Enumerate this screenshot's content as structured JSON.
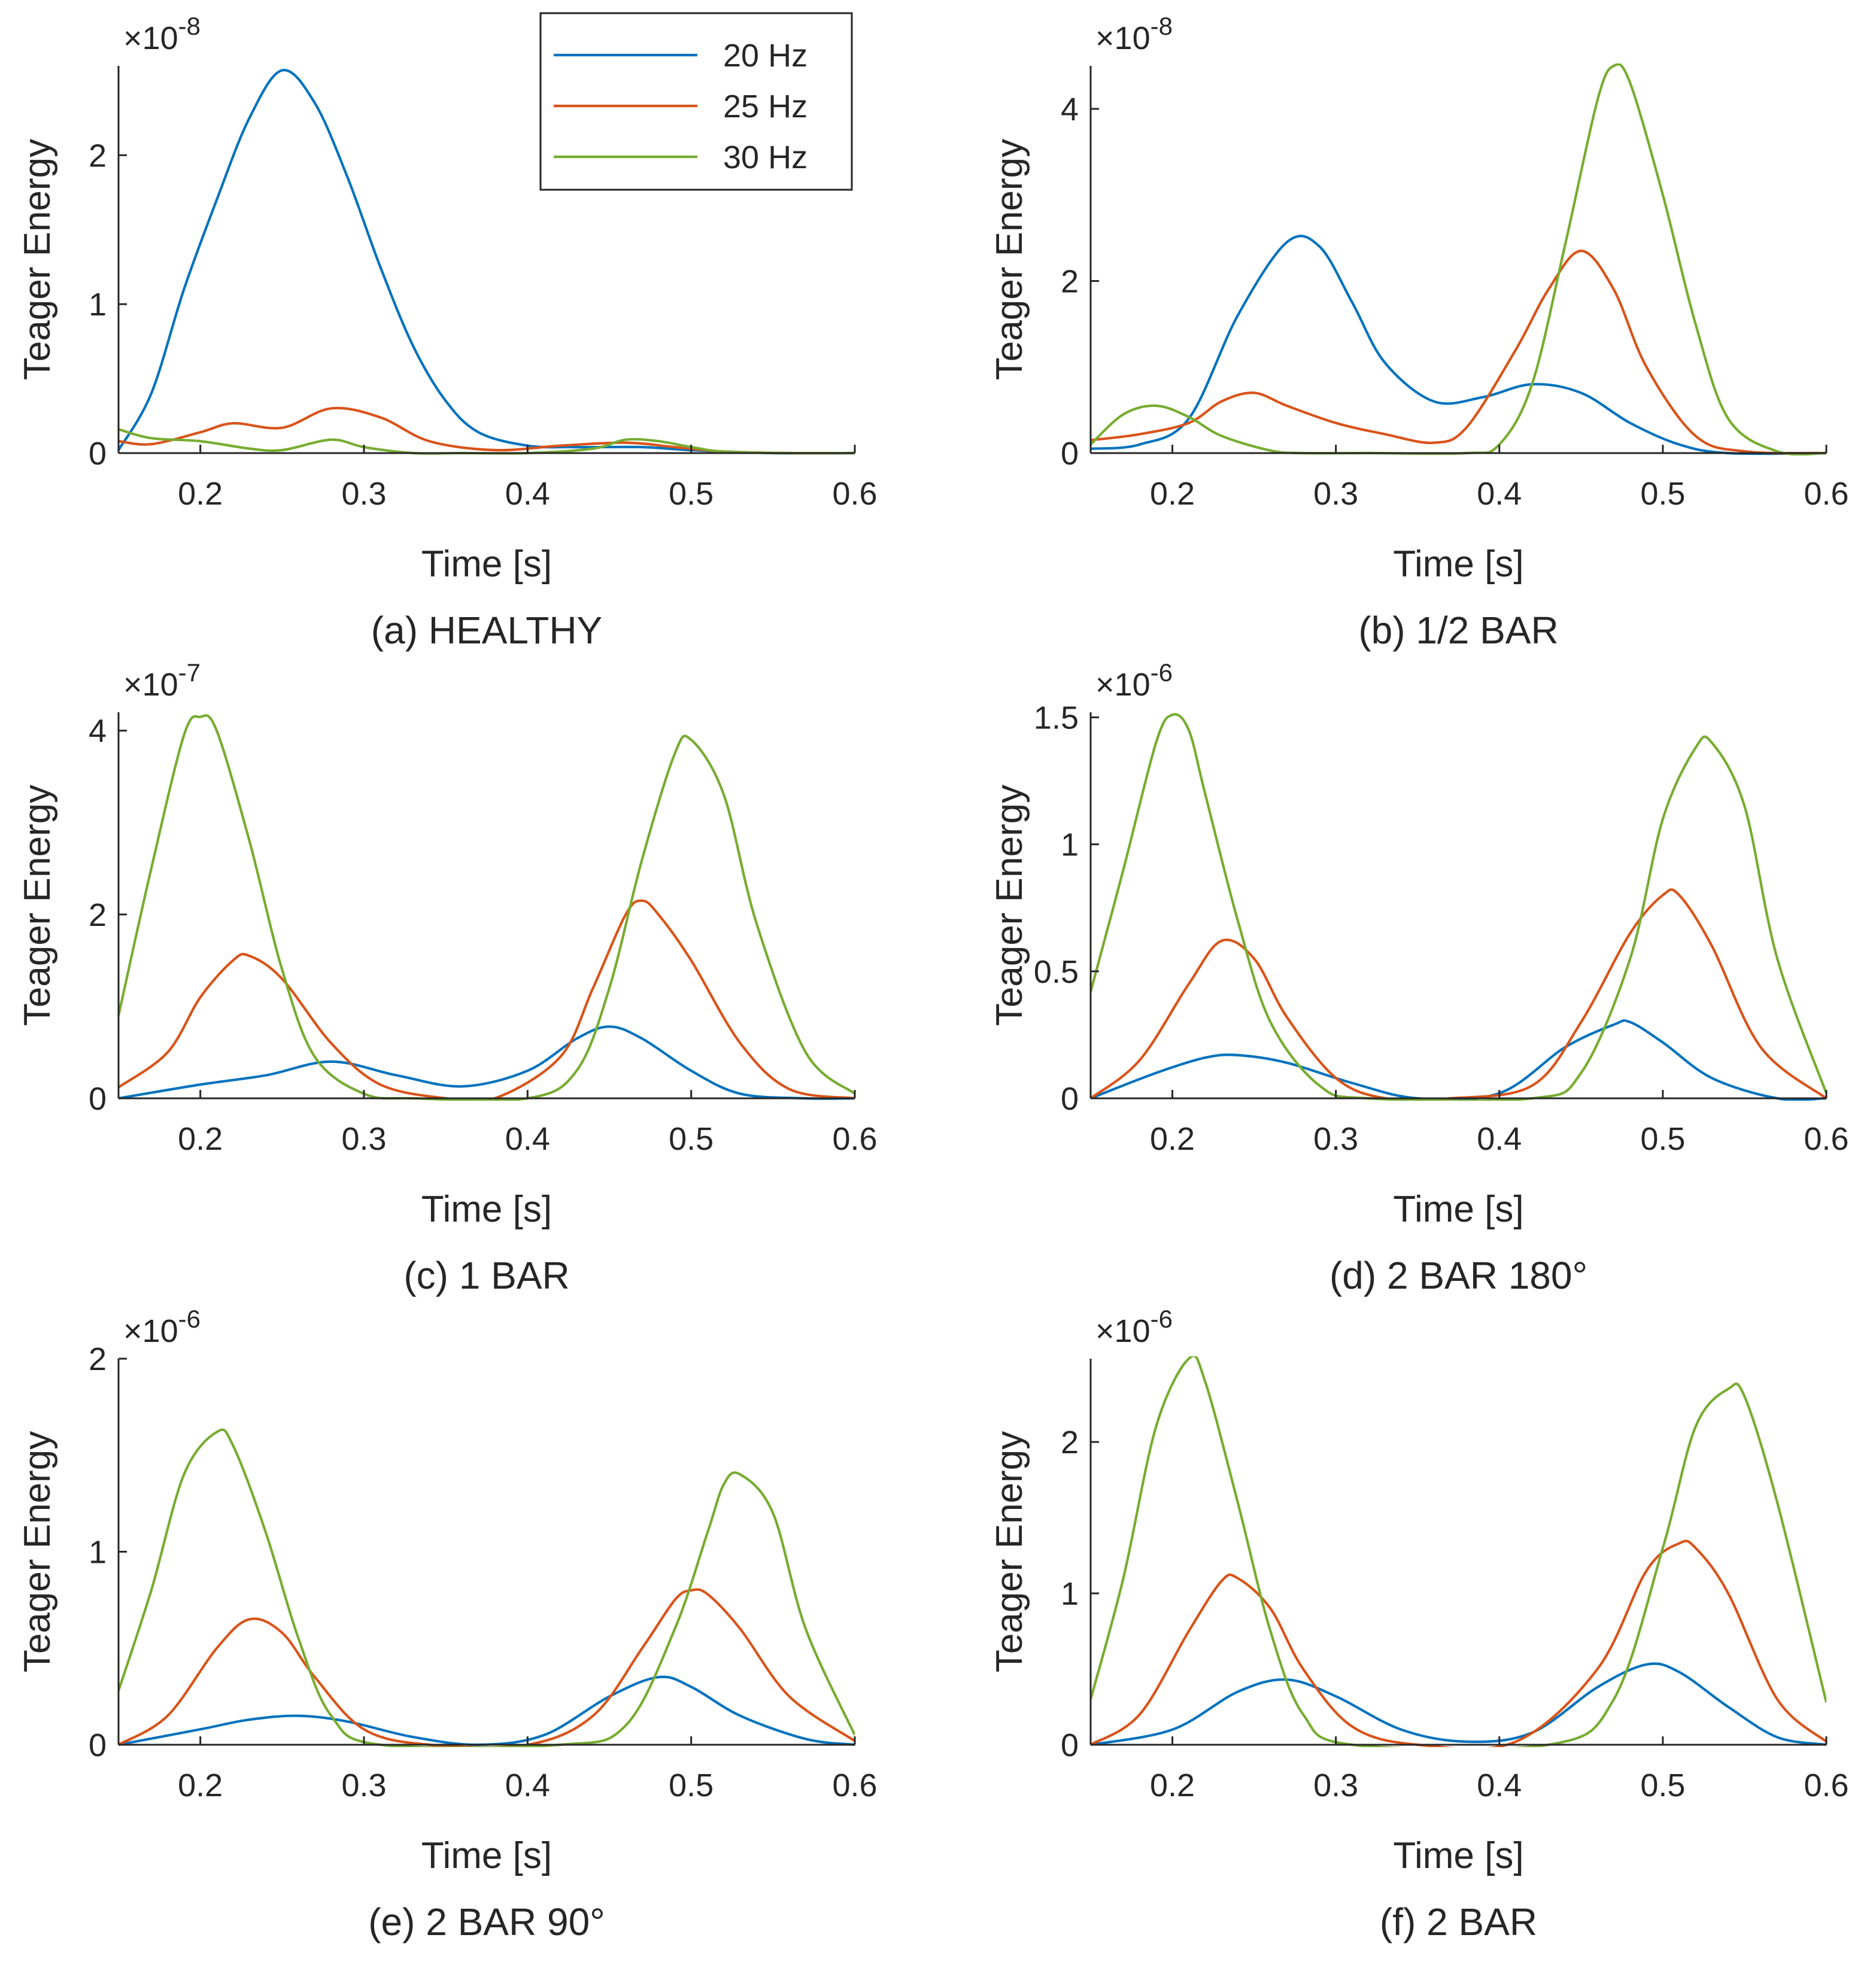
{
  "figure": {
    "series_meta": [
      {
        "name": "20 Hz",
        "color": "#0072BD"
      },
      {
        "name": "25 Hz",
        "color": "#D95319"
      },
      {
        "name": "30 Hz",
        "color": "#77AC30"
      }
    ],
    "legend": {
      "location": "top-right of panel (a)",
      "entries": [
        "20 Hz",
        "25 Hz",
        "30 Hz"
      ]
    }
  },
  "chart_data": [
    {
      "type": "line",
      "caption": "(a) HEALTHY",
      "xlabel": "Time [s]",
      "ylabel": "Teager Energy",
      "exponent_label": "×10",
      "exponent_power": "-8",
      "xlim": [
        0.15,
        0.6
      ],
      "ylim": [
        0,
        2.6
      ],
      "xticks": [
        "0.2",
        "0.3",
        "0.4",
        "0.5",
        "0.6"
      ],
      "xtick_values": [
        0.2,
        0.3,
        0.4,
        0.5,
        0.6
      ],
      "yticks": [
        "0",
        "1",
        "2"
      ],
      "ytick_values": [
        0,
        1,
        2
      ],
      "series": [
        {
          "name": "20 Hz",
          "x": [
            0.15,
            0.17,
            0.19,
            0.21,
            0.23,
            0.25,
            0.27,
            0.29,
            0.31,
            0.33,
            0.35,
            0.37,
            0.4,
            0.43,
            0.47,
            0.5,
            0.55,
            0.6
          ],
          "values": [
            0.02,
            0.4,
            1.1,
            1.7,
            2.25,
            2.57,
            2.35,
            1.85,
            1.25,
            0.72,
            0.35,
            0.14,
            0.05,
            0.04,
            0.04,
            0.02,
            0.0,
            0.0
          ]
        },
        {
          "name": "25 Hz",
          "x": [
            0.15,
            0.17,
            0.2,
            0.22,
            0.25,
            0.28,
            0.31,
            0.34,
            0.38,
            0.42,
            0.46,
            0.49,
            0.52,
            0.56,
            0.6
          ],
          "values": [
            0.08,
            0.06,
            0.14,
            0.2,
            0.17,
            0.3,
            0.24,
            0.08,
            0.02,
            0.05,
            0.07,
            0.04,
            0.01,
            0.0,
            0.0
          ]
        },
        {
          "name": "30 Hz",
          "x": [
            0.15,
            0.17,
            0.2,
            0.23,
            0.25,
            0.28,
            0.3,
            0.33,
            0.36,
            0.4,
            0.44,
            0.46,
            0.48,
            0.5,
            0.52,
            0.56,
            0.6
          ],
          "values": [
            0.16,
            0.1,
            0.08,
            0.03,
            0.02,
            0.09,
            0.04,
            0.0,
            0.0,
            0.0,
            0.03,
            0.09,
            0.08,
            0.04,
            0.01,
            0.0,
            0.0
          ]
        }
      ]
    },
    {
      "type": "line",
      "caption": "(b) 1/2 BAR",
      "xlabel": "Time [s]",
      "ylabel": "Teager Energy",
      "exponent_label": "×10",
      "exponent_power": "-8",
      "xlim": [
        0.15,
        0.6
      ],
      "ylim": [
        0,
        4.5
      ],
      "xticks": [
        "0.2",
        "0.3",
        "0.4",
        "0.5",
        "0.6"
      ],
      "xtick_values": [
        0.2,
        0.3,
        0.4,
        0.5,
        0.6
      ],
      "yticks": [
        "0",
        "2",
        "4"
      ],
      "ytick_values": [
        0,
        2,
        4
      ],
      "series": [
        {
          "name": "20 Hz",
          "x": [
            0.15,
            0.18,
            0.21,
            0.24,
            0.27,
            0.29,
            0.31,
            0.33,
            0.36,
            0.39,
            0.42,
            0.45,
            0.48,
            0.51,
            0.54,
            0.6
          ],
          "values": [
            0.05,
            0.1,
            0.4,
            1.6,
            2.45,
            2.4,
            1.75,
            1.05,
            0.6,
            0.65,
            0.8,
            0.7,
            0.35,
            0.1,
            0.0,
            0.0
          ]
        },
        {
          "name": "25 Hz",
          "x": [
            0.15,
            0.18,
            0.21,
            0.23,
            0.25,
            0.27,
            0.3,
            0.33,
            0.36,
            0.38,
            0.41,
            0.43,
            0.45,
            0.47,
            0.49,
            0.52,
            0.55,
            0.6
          ],
          "values": [
            0.15,
            0.22,
            0.35,
            0.6,
            0.7,
            0.55,
            0.35,
            0.22,
            0.12,
            0.3,
            1.2,
            1.9,
            2.35,
            1.9,
            1.0,
            0.2,
            0.02,
            0.0
          ]
        },
        {
          "name": "30 Hz",
          "x": [
            0.15,
            0.17,
            0.19,
            0.21,
            0.23,
            0.26,
            0.28,
            0.32,
            0.38,
            0.4,
            0.42,
            0.44,
            0.46,
            0.47,
            0.48,
            0.5,
            0.52,
            0.54,
            0.57,
            0.6
          ],
          "values": [
            0.1,
            0.45,
            0.55,
            0.42,
            0.2,
            0.03,
            0.0,
            0.0,
            0.0,
            0.1,
            0.8,
            2.4,
            4.1,
            4.5,
            4.3,
            3.0,
            1.5,
            0.4,
            0.02,
            0.0
          ]
        }
      ]
    },
    {
      "type": "line",
      "caption": "(c) 1 BAR",
      "xlabel": "Time [s]",
      "ylabel": "Teager Energy",
      "exponent_label": "×10",
      "exponent_power": "-7",
      "xlim": [
        0.15,
        0.6
      ],
      "ylim": [
        0,
        4.2
      ],
      "xticks": [
        "0.2",
        "0.3",
        "0.4",
        "0.5",
        "0.6"
      ],
      "xtick_values": [
        0.2,
        0.3,
        0.4,
        0.5,
        0.6
      ],
      "yticks": [
        "0",
        "2",
        "4"
      ],
      "ytick_values": [
        0,
        2,
        4
      ],
      "series": [
        {
          "name": "20 Hz",
          "x": [
            0.15,
            0.2,
            0.24,
            0.28,
            0.32,
            0.36,
            0.4,
            0.43,
            0.45,
            0.47,
            0.5,
            0.53,
            0.57,
            0.6
          ],
          "values": [
            0.0,
            0.15,
            0.25,
            0.4,
            0.25,
            0.13,
            0.3,
            0.65,
            0.78,
            0.65,
            0.3,
            0.05,
            0.0,
            0.0
          ]
        },
        {
          "name": "25 Hz",
          "x": [
            0.15,
            0.18,
            0.2,
            0.22,
            0.23,
            0.25,
            0.28,
            0.31,
            0.35,
            0.38,
            0.42,
            0.44,
            0.46,
            0.47,
            0.48,
            0.5,
            0.53,
            0.56,
            0.6
          ],
          "values": [
            0.12,
            0.5,
            1.1,
            1.5,
            1.55,
            1.3,
            0.6,
            0.15,
            0.0,
            0.0,
            0.45,
            1.2,
            2.0,
            2.15,
            2.0,
            1.5,
            0.6,
            0.1,
            0.0
          ]
        },
        {
          "name": "30 Hz",
          "x": [
            0.15,
            0.17,
            0.19,
            0.2,
            0.21,
            0.23,
            0.25,
            0.27,
            0.3,
            0.33,
            0.4,
            0.43,
            0.45,
            0.47,
            0.49,
            0.5,
            0.52,
            0.54,
            0.57,
            0.6
          ],
          "values": [
            0.9,
            2.5,
            3.95,
            4.15,
            4.0,
            2.8,
            1.4,
            0.45,
            0.05,
            0.0,
            0.0,
            0.3,
            1.2,
            2.6,
            3.75,
            3.9,
            3.3,
            1.9,
            0.5,
            0.05
          ]
        }
      ]
    },
    {
      "type": "line",
      "caption": "(d) 2 BAR 180°",
      "xlabel": "Time [s]",
      "ylabel": "Teager Energy",
      "exponent_label": "×10",
      "exponent_power": "-6",
      "xlim": [
        0.15,
        0.6
      ],
      "ylim": [
        0,
        1.52
      ],
      "xticks": [
        "0.2",
        "0.3",
        "0.4",
        "0.5",
        "0.6"
      ],
      "xtick_values": [
        0.2,
        0.3,
        0.4,
        0.5,
        0.6
      ],
      "yticks": [
        "0",
        "0.5",
        "1",
        "1.5"
      ],
      "ytick_values": [
        0,
        0.5,
        1,
        1.5
      ],
      "series": [
        {
          "name": "20 Hz",
          "x": [
            0.15,
            0.19,
            0.22,
            0.24,
            0.27,
            0.31,
            0.35,
            0.4,
            0.44,
            0.47,
            0.48,
            0.5,
            0.53,
            0.57,
            0.6
          ],
          "values": [
            0.0,
            0.1,
            0.16,
            0.17,
            0.14,
            0.06,
            0.0,
            0.02,
            0.2,
            0.29,
            0.3,
            0.22,
            0.08,
            0.0,
            0.0
          ]
        },
        {
          "name": "25 Hz",
          "x": [
            0.15,
            0.18,
            0.21,
            0.23,
            0.25,
            0.27,
            0.3,
            0.33,
            0.37,
            0.42,
            0.45,
            0.48,
            0.5,
            0.51,
            0.53,
            0.56,
            0.6
          ],
          "values": [
            0.0,
            0.15,
            0.45,
            0.62,
            0.55,
            0.32,
            0.08,
            0.0,
            0.0,
            0.05,
            0.3,
            0.65,
            0.8,
            0.8,
            0.6,
            0.2,
            0.0
          ]
        },
        {
          "name": "30 Hz",
          "x": [
            0.15,
            0.17,
            0.19,
            0.2,
            0.21,
            0.22,
            0.24,
            0.26,
            0.29,
            0.32,
            0.42,
            0.45,
            0.48,
            0.5,
            0.52,
            0.53,
            0.55,
            0.57,
            0.6
          ],
          "values": [
            0.42,
            0.9,
            1.4,
            1.51,
            1.45,
            1.2,
            0.7,
            0.3,
            0.05,
            0.0,
            0.0,
            0.1,
            0.55,
            1.1,
            1.38,
            1.4,
            1.15,
            0.55,
            0.02
          ]
        }
      ]
    },
    {
      "type": "line",
      "caption": "(e) 2 BAR 90°",
      "xlabel": "Time [s]",
      "ylabel": "Teager Energy",
      "exponent_label": "×10",
      "exponent_power": "-6",
      "xlim": [
        0.15,
        0.6
      ],
      "ylim": [
        0,
        2.0
      ],
      "xticks": [
        "0.2",
        "0.3",
        "0.4",
        "0.5",
        "0.6"
      ],
      "xtick_values": [
        0.2,
        0.3,
        0.4,
        0.5,
        0.6
      ],
      "yticks": [
        "0",
        "1",
        "2"
      ],
      "ytick_values": [
        0,
        1,
        2
      ],
      "series": [
        {
          "name": "20 Hz",
          "x": [
            0.15,
            0.2,
            0.23,
            0.26,
            0.29,
            0.33,
            0.37,
            0.41,
            0.45,
            0.48,
            0.5,
            0.53,
            0.57,
            0.6
          ],
          "values": [
            0.0,
            0.08,
            0.13,
            0.15,
            0.12,
            0.04,
            0.0,
            0.05,
            0.25,
            0.35,
            0.3,
            0.15,
            0.03,
            0.0
          ]
        },
        {
          "name": "25 Hz",
          "x": [
            0.15,
            0.18,
            0.21,
            0.23,
            0.25,
            0.27,
            0.3,
            0.34,
            0.4,
            0.44,
            0.47,
            0.49,
            0.5,
            0.51,
            0.53,
            0.56,
            0.6
          ],
          "values": [
            0.0,
            0.15,
            0.5,
            0.65,
            0.58,
            0.35,
            0.08,
            0.0,
            0.0,
            0.15,
            0.5,
            0.75,
            0.8,
            0.78,
            0.6,
            0.25,
            0.02
          ]
        },
        {
          "name": "30 Hz",
          "x": [
            0.15,
            0.17,
            0.19,
            0.21,
            0.22,
            0.24,
            0.26,
            0.28,
            0.31,
            0.42,
            0.46,
            0.49,
            0.51,
            0.52,
            0.53,
            0.55,
            0.57,
            0.6
          ],
          "values": [
            0.28,
            0.8,
            1.4,
            1.62,
            1.55,
            1.1,
            0.55,
            0.15,
            0.0,
            0.0,
            0.1,
            0.6,
            1.1,
            1.35,
            1.4,
            1.2,
            0.6,
            0.05
          ]
        }
      ]
    },
    {
      "type": "line",
      "caption": "(f) 2 BAR",
      "xlabel": "Time [s]",
      "ylabel": "Teager Energy",
      "exponent_label": "×10",
      "exponent_power": "-6",
      "xlim": [
        0.15,
        0.6
      ],
      "ylim": [
        0,
        2.55
      ],
      "xticks": [
        "0.2",
        "0.3",
        "0.4",
        "0.5",
        "0.6"
      ],
      "xtick_values": [
        0.2,
        0.3,
        0.4,
        0.5,
        0.6
      ],
      "yticks": [
        "0",
        "1",
        "2"
      ],
      "ytick_values": [
        0,
        1,
        2
      ],
      "series": [
        {
          "name": "20 Hz",
          "x": [
            0.15,
            0.2,
            0.24,
            0.27,
            0.3,
            0.34,
            0.38,
            0.42,
            0.46,
            0.49,
            0.51,
            0.54,
            0.57,
            0.6
          ],
          "values": [
            0.0,
            0.1,
            0.35,
            0.43,
            0.32,
            0.1,
            0.02,
            0.08,
            0.38,
            0.53,
            0.48,
            0.25,
            0.05,
            0.0
          ]
        },
        {
          "name": "25 Hz",
          "x": [
            0.15,
            0.18,
            0.21,
            0.23,
            0.24,
            0.26,
            0.28,
            0.31,
            0.35,
            0.41,
            0.46,
            0.49,
            0.51,
            0.52,
            0.54,
            0.57,
            0.6
          ],
          "values": [
            0.0,
            0.2,
            0.75,
            1.08,
            1.1,
            0.9,
            0.5,
            0.12,
            0.0,
            0.02,
            0.5,
            1.15,
            1.33,
            1.3,
            1.0,
            0.3,
            0.02
          ]
        },
        {
          "name": "30 Hz",
          "x": [
            0.15,
            0.17,
            0.19,
            0.21,
            0.22,
            0.24,
            0.26,
            0.28,
            0.31,
            0.43,
            0.47,
            0.5,
            0.52,
            0.54,
            0.55,
            0.57,
            0.6
          ],
          "values": [
            0.3,
            1.1,
            2.1,
            2.55,
            2.4,
            1.6,
            0.75,
            0.2,
            0.0,
            0.0,
            0.3,
            1.3,
            2.1,
            2.35,
            2.3,
            1.6,
            0.28
          ]
        }
      ]
    }
  ]
}
